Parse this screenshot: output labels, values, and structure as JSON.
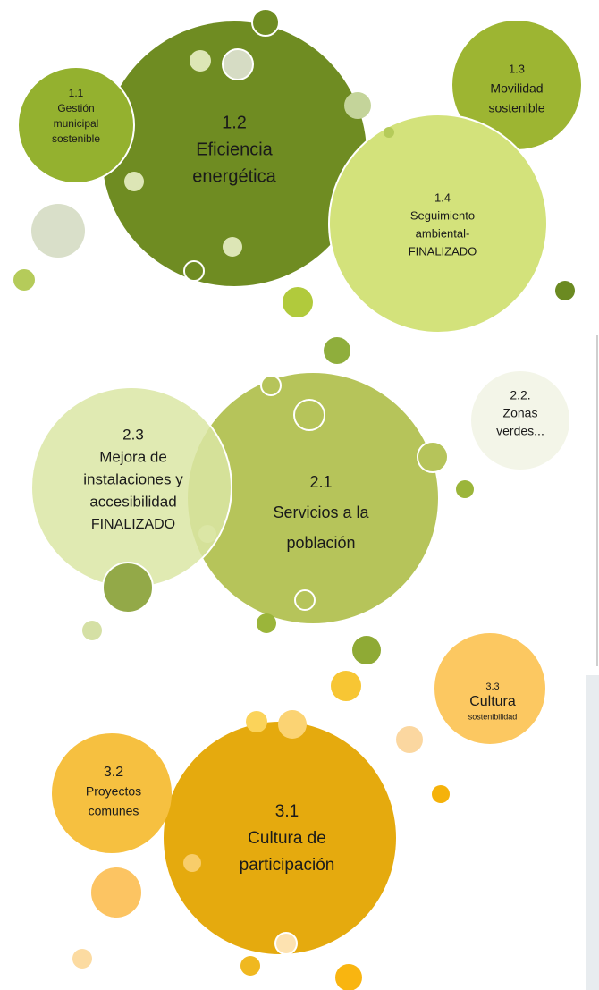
{
  "groups": [
    {
      "circles": [
        {
          "lines": [
            "1.1",
            "Gestión",
            "municipal",
            "sostenible"
          ]
        },
        {
          "lines": [
            "1.2",
            "Eficiencia",
            "energética"
          ]
        },
        {
          "lines": [
            "1.3",
            "Movilidad",
            "sostenible"
          ]
        },
        {
          "lines": [
            "1.4",
            "Seguimiento",
            "ambiental-",
            "FINALIZADO"
          ]
        }
      ]
    },
    {
      "circles": [
        {
          "lines": [
            "2.1",
            "Servicios a la",
            "población"
          ]
        },
        {
          "lines": [
            "2.2.",
            "Zonas",
            "verdes..."
          ]
        },
        {
          "lines": [
            "2.3",
            "Mejora de",
            "instalaciones y",
            "accesibilidad",
            "FINALIZADO"
          ]
        }
      ]
    },
    {
      "circles": [
        {
          "lines": [
            "3.1",
            "Cultura de",
            "participación"
          ]
        },
        {
          "lines": [
            "3.2",
            "Proyectos",
            "comunes"
          ]
        },
        {
          "lines": [
            "3.3",
            "Cultura",
            "sostenibilidad"
          ]
        }
      ]
    }
  ]
}
